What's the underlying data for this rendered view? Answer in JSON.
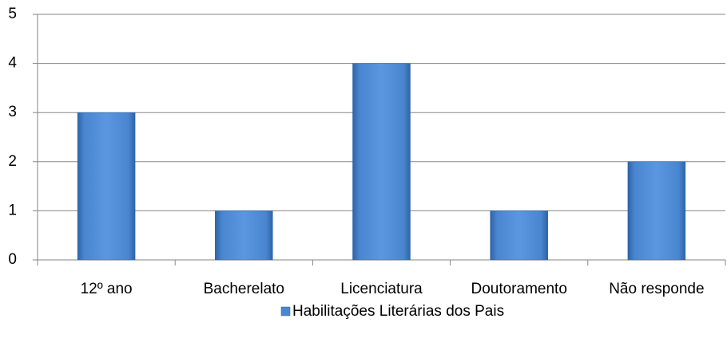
{
  "chart_data": {
    "type": "bar",
    "categories": [
      "12º ano",
      "Bacherelato",
      "Licenciatura",
      "Doutoramento",
      "Não responde"
    ],
    "series": [
      {
        "name": "Habilitações Literárias dos Pais",
        "color": "#4a86d0",
        "values": [
          3,
          1,
          4,
          1,
          2
        ]
      }
    ],
    "ylim": [
      0,
      5
    ],
    "yticks": [
      0,
      1,
      2,
      3,
      4,
      5
    ],
    "grid": true,
    "legend": "bottom"
  }
}
